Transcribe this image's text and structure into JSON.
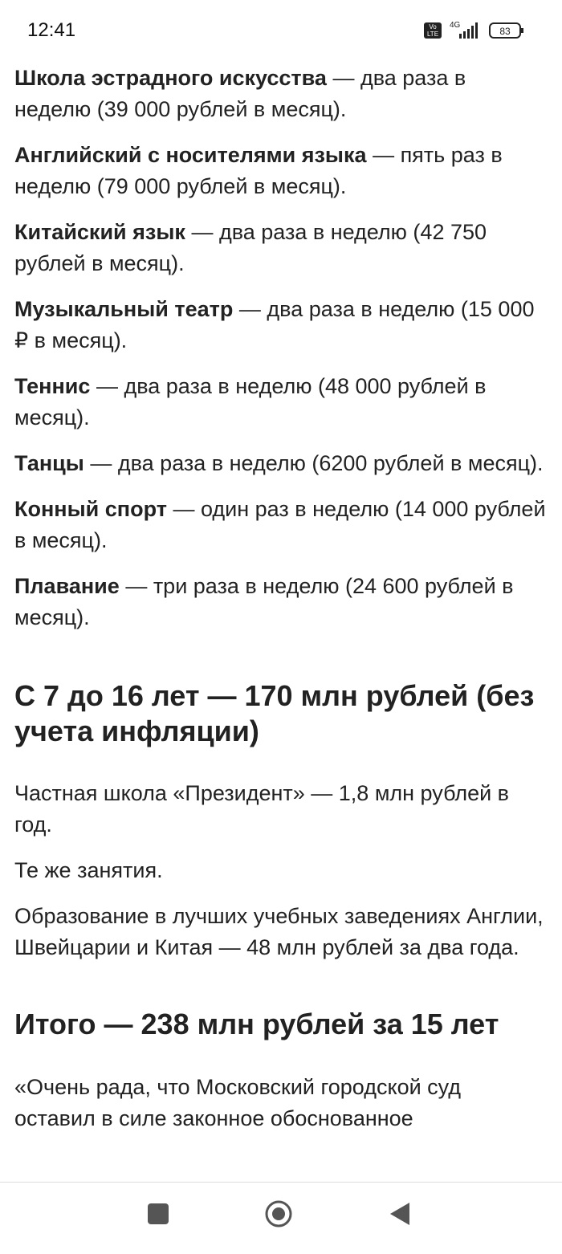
{
  "status_bar": {
    "time": "12:41",
    "volte_top": "Vo",
    "volte_bottom": "LTE",
    "network": "4G",
    "battery": "83"
  },
  "article": {
    "items": [
      {
        "name": "Школа эстрадного искусства",
        "text": "— два раза в неделю (39 000 рублей в месяц)."
      },
      {
        "name": "Английский с носителями языка",
        "text": "— пять раз в неделю (79 000 рублей в месяц)."
      },
      {
        "name": "Китайский язык",
        "text": "— два раза в неделю (42 750 рублей в месяц)."
      },
      {
        "name": "Музыкальный театр",
        "text": "— два раза в неделю (15 000 ₽ в месяц)."
      },
      {
        "name": "Теннис",
        "text": "— два раза в неделю (48 000 рублей в месяц)."
      },
      {
        "name": "Танцы",
        "text": "— два раза в неделю (6200 рублей в месяц)."
      },
      {
        "name": "Конный спорт",
        "text": "— один раз в неделю (14 000 рублей в месяц)."
      },
      {
        "name": "Плавание",
        "text": "— три раза в неделю (24 600 рублей в месяц)."
      }
    ],
    "sections": [
      {
        "heading": "С 7 до 16 лет — 170 млн рублей (без учета инфляции)",
        "paragraphs": [
          "Частная школа «Президент» — 1,8 млн рублей в год.",
          "Те же занятия.",
          "Образование в лучших учебных заведениях Англии, Швейцарии и Китая — 48 млн рублей за два года."
        ]
      },
      {
        "heading": "Итого — 238 млн рублей за 15 лет",
        "paragraphs": [
          "«Очень рада, что Московский городской суд оставил в силе законное обоснованное"
        ]
      }
    ]
  }
}
